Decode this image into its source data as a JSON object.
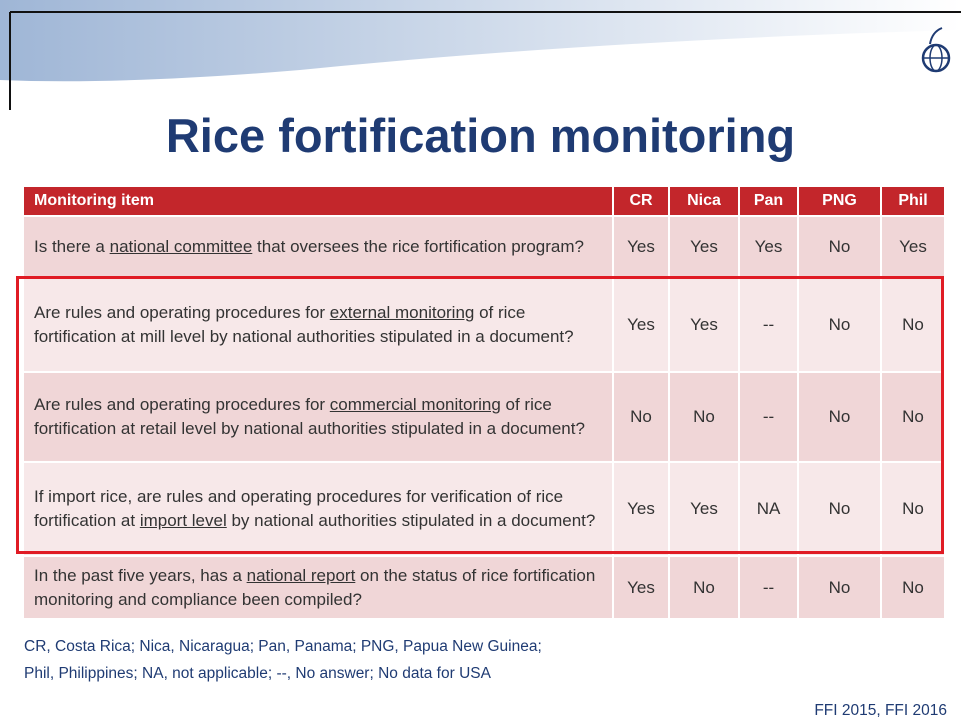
{
  "title": "Rice fortification monitoring",
  "table": {
    "header": [
      "Monitoring item",
      "CR",
      "Nica",
      "Pan",
      "PNG",
      "Phil"
    ],
    "rows": [
      {
        "question": {
          "before": "Is there a ",
          "underlined": "national committee",
          "after": " that oversees the rice fortification program?"
        },
        "answers": [
          "Yes",
          "Yes",
          "Yes",
          "No",
          "Yes"
        ]
      },
      {
        "question": {
          "before": "Are rules and operating procedures for ",
          "underlined": "external monitoring",
          "after": " of rice fortification at mill level by national authorities stipulated in a document?"
        },
        "answers": [
          "Yes",
          "Yes",
          "--",
          "No",
          "No"
        ]
      },
      {
        "question": {
          "before": "Are rules and operating procedures for ",
          "underlined": "commercial monitoring",
          "after": " of rice fortification at retail level by national authorities stipulated in a document?"
        },
        "answers": [
          "No",
          "No",
          "--",
          "No",
          "No"
        ]
      },
      {
        "question": {
          "before": "If import rice, are rules and operating procedures for verification of rice fortification at ",
          "underlined": "import level",
          "after": " by national authorities stipulated in a document?"
        },
        "answers": [
          "Yes",
          "Yes",
          "NA",
          "No",
          "No"
        ]
      },
      {
        "question": {
          "before": "In the past five years, has a ",
          "underlined": "national report",
          "after": " on the status of rice fortification monitoring and compliance been compiled?"
        },
        "answers": [
          "Yes",
          "No",
          "--",
          "No",
          "No"
        ]
      }
    ]
  },
  "footnote": [
    "CR, Costa Rica; Nica, Nicaragua; Pan, Panama; PNG, Papua New Guinea;",
    "Phil, Philippines; NA, not applicable; --, No answer; No data for USA"
  ],
  "citation": "FFI 2015, FFI 2016"
}
